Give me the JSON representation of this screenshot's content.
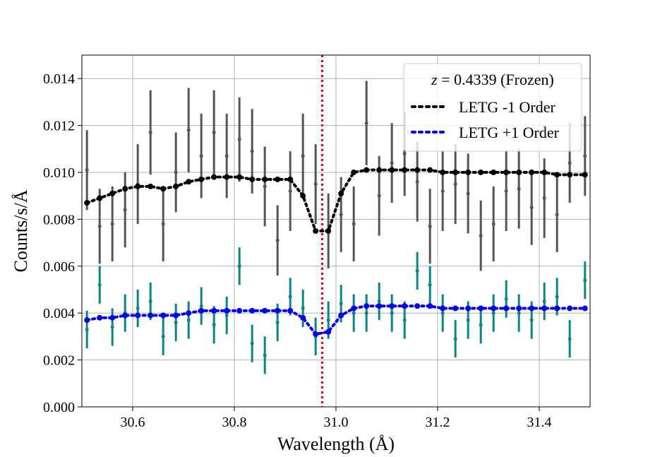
{
  "chart_data": {
    "type": "scatter",
    "title": "",
    "xlabel": "Wavelength (Å)",
    "ylabel": "Counts/s/Å",
    "xlim": [
      30.5,
      31.5
    ],
    "ylim": [
      0.0,
      0.015
    ],
    "xticks": [
      30.6,
      30.8,
      31.0,
      31.2,
      31.4
    ],
    "xtick_labels": [
      "30.6",
      "30.8",
      "31.0",
      "31.2",
      "31.4"
    ],
    "yticks": [
      0.0,
      0.002,
      0.004,
      0.006,
      0.008,
      0.01,
      0.012,
      0.014
    ],
    "ytick_labels": [
      "0.000",
      "0.002",
      "0.004",
      "0.006",
      "0.008",
      "0.010",
      "0.012",
      "0.014"
    ],
    "grid": true,
    "legend_position": "top-right",
    "legend_title_z": "z",
    "legend_title_rest": " = 0.4339 (Frozen)",
    "vline": {
      "x": 30.973,
      "color": "#e8000b",
      "style": "dotted"
    },
    "colors": {
      "minus_data": "#555555",
      "plus_data": "#0a8585",
      "minus_model": "#000000",
      "plus_model": "#0000ee",
      "vline": "#e8000b"
    },
    "data_series": [
      {
        "name": "LETG -1 Order data",
        "x": [
          30.51,
          30.535,
          30.56,
          30.585,
          30.61,
          30.635,
          30.66,
          30.685,
          30.71,
          30.735,
          30.76,
          30.785,
          30.81,
          30.835,
          30.86,
          30.885,
          30.91,
          30.935,
          30.96,
          30.985,
          31.01,
          31.035,
          31.06,
          31.085,
          31.11,
          31.135,
          31.16,
          31.185,
          31.21,
          31.235,
          31.26,
          31.285,
          31.31,
          31.335,
          31.36,
          31.385,
          31.41,
          31.435,
          31.46,
          31.49
        ],
        "y": [
          0.0101,
          0.0077,
          0.0078,
          0.0084,
          0.0095,
          0.0117,
          0.0078,
          0.01,
          0.0118,
          0.0107,
          0.0117,
          0.0107,
          0.0114,
          0.0109,
          0.0094,
          0.0071,
          0.0092,
          0.0107,
          0.0095,
          0.0075,
          0.0082,
          0.0078,
          0.0121,
          0.009,
          0.0104,
          0.0108,
          0.0096,
          0.0077,
          0.0092,
          0.0095,
          0.0091,
          0.0073,
          0.0078,
          0.0092,
          0.0093,
          0.0085,
          0.0089,
          0.0082,
          0.0104,
          0.0107
        ],
        "err": [
          0.0017,
          0.0016,
          0.0016,
          0.0016,
          0.0017,
          0.0018,
          0.0016,
          0.0017,
          0.0018,
          0.0018,
          0.0018,
          0.0018,
          0.0018,
          0.0018,
          0.0017,
          0.0015,
          0.0017,
          0.0018,
          0.0017,
          0.0016,
          0.0016,
          0.0016,
          0.0018,
          0.0017,
          0.0017,
          0.0018,
          0.0017,
          0.0016,
          0.0017,
          0.0017,
          0.0017,
          0.0015,
          0.0016,
          0.0017,
          0.0017,
          0.0016,
          0.0017,
          0.0016,
          0.0017,
          0.0017
        ]
      },
      {
        "name": "LETG +1 Order data",
        "x": [
          30.51,
          30.535,
          30.56,
          30.585,
          30.61,
          30.635,
          30.66,
          30.685,
          30.71,
          30.735,
          30.76,
          30.785,
          30.81,
          30.835,
          30.86,
          30.885,
          30.91,
          30.935,
          30.96,
          30.985,
          31.01,
          31.035,
          31.06,
          31.085,
          31.11,
          31.135,
          31.16,
          31.185,
          31.21,
          31.235,
          31.26,
          31.285,
          31.31,
          31.335,
          31.36,
          31.385,
          31.41,
          31.435,
          31.46,
          31.49
        ],
        "y": [
          0.0033,
          0.0052,
          0.0034,
          0.004,
          0.0042,
          0.0045,
          0.003,
          0.0036,
          0.0037,
          0.0043,
          0.0035,
          0.0039,
          0.006,
          0.0027,
          0.0022,
          0.0036,
          0.0047,
          0.0042,
          0.003,
          0.0037,
          0.0044,
          0.004,
          0.004,
          0.0045,
          0.004,
          0.0037,
          0.0058,
          0.0052,
          0.004,
          0.0029,
          0.0037,
          0.0035,
          0.004,
          0.0046,
          0.004,
          0.0037,
          0.0045,
          0.0047,
          0.0029,
          0.0054
        ]
      }
    ],
    "model_series": [
      {
        "name": "LETG -1 Order",
        "legend_label": "LETG -1 Order",
        "x": [
          30.51,
          30.535,
          30.56,
          30.585,
          30.61,
          30.635,
          30.66,
          30.685,
          30.71,
          30.735,
          30.76,
          30.785,
          30.81,
          30.835,
          30.86,
          30.885,
          30.91,
          30.935,
          30.96,
          30.985,
          31.01,
          31.035,
          31.06,
          31.085,
          31.11,
          31.135,
          31.16,
          31.185,
          31.21,
          31.235,
          31.26,
          31.285,
          31.31,
          31.335,
          31.36,
          31.385,
          31.41,
          31.435,
          31.46,
          31.49
        ],
        "y": [
          0.0087,
          0.0089,
          0.0091,
          0.0093,
          0.0094,
          0.0094,
          0.0093,
          0.0094,
          0.0096,
          0.0097,
          0.0098,
          0.0098,
          0.0098,
          0.0097,
          0.0097,
          0.0097,
          0.0097,
          0.009,
          0.0075,
          0.0075,
          0.0091,
          0.01,
          0.0101,
          0.0101,
          0.0101,
          0.0101,
          0.0101,
          0.0101,
          0.01,
          0.01,
          0.01,
          0.01,
          0.01,
          0.01,
          0.01,
          0.01,
          0.01,
          0.0099,
          0.0099,
          0.0099
        ]
      },
      {
        "name": "LETG +1 Order",
        "legend_label": "LETG +1 Order",
        "x": [
          30.51,
          30.535,
          30.56,
          30.585,
          30.61,
          30.635,
          30.66,
          30.685,
          30.71,
          30.735,
          30.76,
          30.785,
          30.81,
          30.835,
          30.86,
          30.885,
          30.91,
          30.935,
          30.96,
          30.985,
          31.01,
          31.035,
          31.06,
          31.085,
          31.11,
          31.135,
          31.16,
          31.185,
          31.21,
          31.235,
          31.26,
          31.285,
          31.31,
          31.335,
          31.36,
          31.385,
          31.41,
          31.435,
          31.46,
          31.49
        ],
        "y": [
          0.0037,
          0.0038,
          0.0038,
          0.0039,
          0.0039,
          0.0039,
          0.0039,
          0.0039,
          0.004,
          0.0041,
          0.0041,
          0.0041,
          0.0041,
          0.0041,
          0.0041,
          0.0041,
          0.0041,
          0.0038,
          0.0031,
          0.0032,
          0.0039,
          0.0042,
          0.0043,
          0.0043,
          0.0043,
          0.0043,
          0.0043,
          0.0043,
          0.0042,
          0.0042,
          0.0042,
          0.0042,
          0.0042,
          0.0042,
          0.0042,
          0.0042,
          0.0042,
          0.0042,
          0.0042,
          0.0042
        ]
      }
    ]
  }
}
